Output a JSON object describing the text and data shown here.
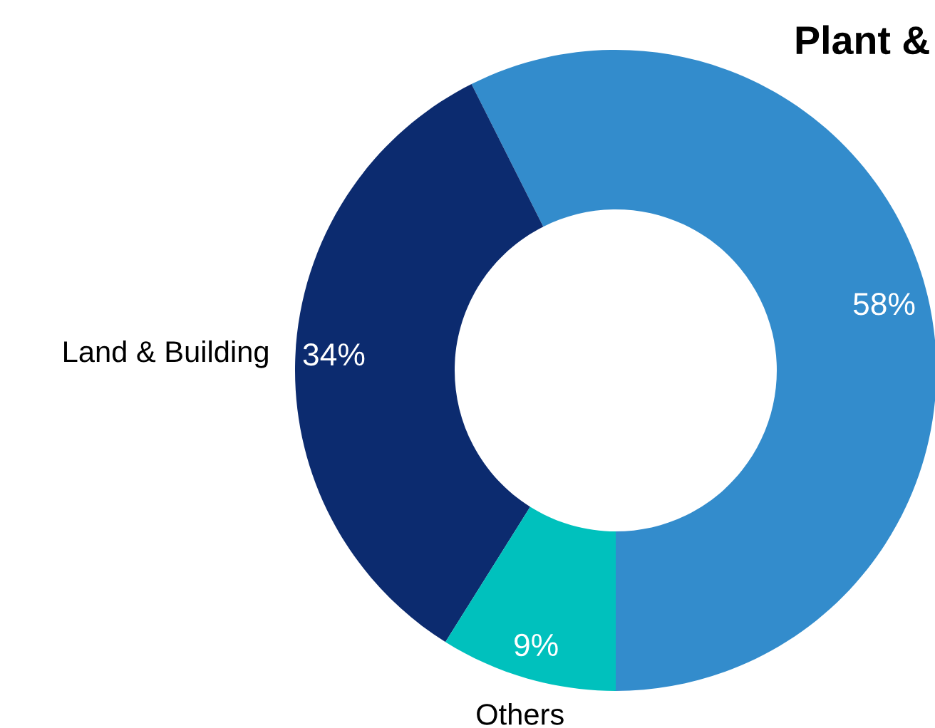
{
  "chart_data": {
    "type": "donut",
    "title": "Plant &",
    "categories": [
      null,
      "Land & Building",
      "Others"
    ],
    "values": [
      58,
      34,
      9
    ],
    "colors": [
      "#338ccc",
      "#0c2b6f",
      "#00c1bd"
    ],
    "value_labels": [
      "58%",
      "34%",
      "9%"
    ]
  }
}
